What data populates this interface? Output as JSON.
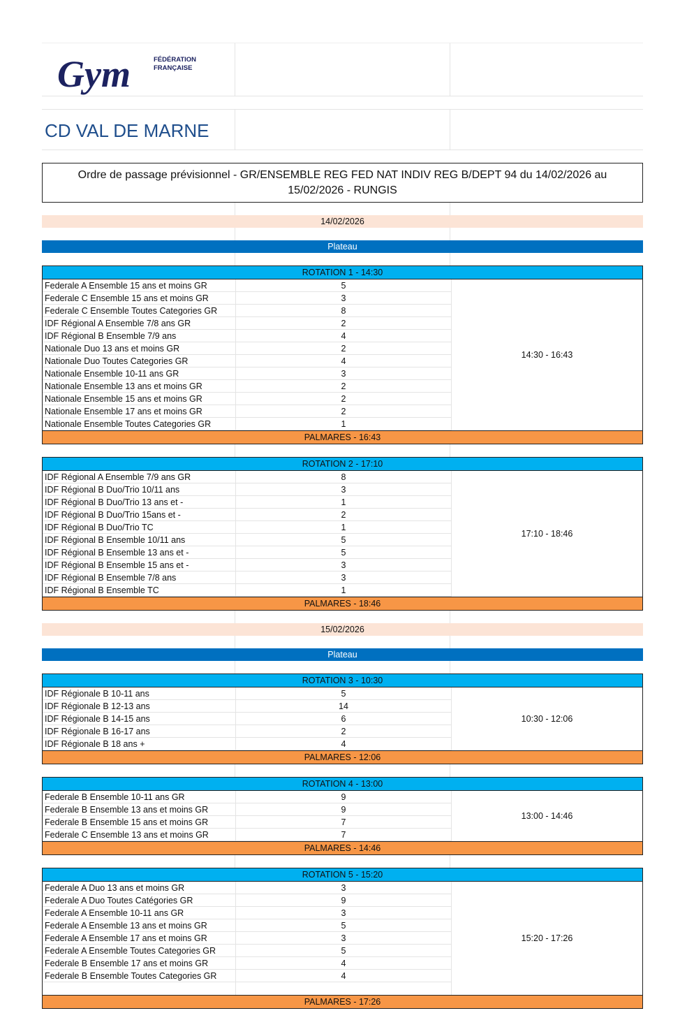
{
  "logo": {
    "text": "FÉDÉRATION FRANÇAISE Gym",
    "color": "#1c2260"
  },
  "org_title": "CD VAL DE MARNE",
  "doc_title": "Ordre de passage prévisionnel - GR/ENSEMBLE REG FED NAT INDIV REG B/DEPT 94 du 14/02/2026 au 15/02/2026 - RUNGIS",
  "colors": {
    "date_bg": "#fce4d6",
    "plateau_bg": "#0070c0",
    "rotation_bg": "#00b0f0",
    "palmares_bg": "#f79646"
  },
  "days": [
    {
      "date": "14/02/2026",
      "plateau": "Plateau",
      "rotations": [
        {
          "title": "ROTATION 1 - 14:30",
          "range": "14:30 - 16:43",
          "palmares": "PALMARES - 16:43",
          "rows": [
            {
              "cat": "Federale A Ensemble 15 ans et moins GR",
              "n": "5"
            },
            {
              "cat": "Federale C Ensemble 15 ans et moins GR",
              "n": "3"
            },
            {
              "cat": "Federale C Ensemble Toutes Categories GR",
              "n": "8"
            },
            {
              "cat": "IDF Régional  A Ensemble 7/8 ans GR",
              "n": "2"
            },
            {
              "cat": "IDF Régional B Ensemble 7/9 ans",
              "n": "4"
            },
            {
              "cat": "Nationale Duo 13 ans et moins GR",
              "n": "2"
            },
            {
              "cat": "Nationale Duo Toutes Categories GR",
              "n": "4"
            },
            {
              "cat": "Nationale Ensemble 10-11 ans GR",
              "n": "3"
            },
            {
              "cat": "Nationale Ensemble 13 ans et moins GR",
              "n": "2"
            },
            {
              "cat": "Nationale Ensemble 15 ans et moins GR",
              "n": "2"
            },
            {
              "cat": "Nationale Ensemble 17 ans et moins GR",
              "n": "2"
            },
            {
              "cat": "Nationale Ensemble Toutes Categories GR",
              "n": "1"
            }
          ]
        },
        {
          "title": "ROTATION 2 - 17:10",
          "range": "17:10 - 18:46",
          "palmares": "PALMARES - 18:46",
          "rows": [
            {
              "cat": "IDF Régional  A Ensemble 7/9 ans GR",
              "n": "8"
            },
            {
              "cat": "IDF Régional B Duo/Trio 10/11 ans",
              "n": "3"
            },
            {
              "cat": "IDF Régional B Duo/Trio 13 ans et -",
              "n": "1"
            },
            {
              "cat": "IDF Régional B Duo/Trio 15ans et -",
              "n": "2"
            },
            {
              "cat": "IDF Régional B Duo/Trio TC",
              "n": "1"
            },
            {
              "cat": "IDF Régional B Ensemble 10/11 ans",
              "n": "5"
            },
            {
              "cat": "IDF Régional B Ensemble 13 ans et -",
              "n": "5"
            },
            {
              "cat": "IDF Régional B Ensemble 15 ans et -",
              "n": "3"
            },
            {
              "cat": "IDF Régional B Ensemble 7/8 ans",
              "n": "3"
            },
            {
              "cat": "IDF Régional B Ensemble TC",
              "n": "1"
            }
          ]
        }
      ]
    },
    {
      "date": "15/02/2026",
      "plateau": "Plateau",
      "rotations": [
        {
          "title": "ROTATION 3 - 10:30",
          "range": "10:30 - 12:06",
          "palmares": "PALMARES - 12:06",
          "rows": [
            {
              "cat": "IDF Régionale B 10-11 ans",
              "n": "5"
            },
            {
              "cat": "IDF Régionale B 12-13 ans",
              "n": "14"
            },
            {
              "cat": "IDF Régionale B 14-15 ans",
              "n": "6"
            },
            {
              "cat": "IDF Régionale B 16-17 ans",
              "n": "2"
            },
            {
              "cat": "IDF Régionale B 18 ans +",
              "n": "4"
            }
          ]
        },
        {
          "title": "ROTATION 4 - 13:00",
          "range": "13:00 - 14:46",
          "palmares": "PALMARES - 14:46",
          "rows": [
            {
              "cat": "Federale B Ensemble 10-11 ans GR",
              "n": "9"
            },
            {
              "cat": "Federale B Ensemble 13 ans et moins GR",
              "n": "9"
            },
            {
              "cat": "Federale B Ensemble 15 ans et moins GR",
              "n": "7"
            },
            {
              "cat": "Federale C Ensemble 13 ans et moins GR",
              "n": "7"
            }
          ]
        },
        {
          "title": "ROTATION 5 - 15:20",
          "range": "15:20 - 17:26",
          "palmares": "PALMARES - 17:26",
          "rows": [
            {
              "cat": "Federale A Duo 13 ans et moins GR",
              "n": "3"
            },
            {
              "cat": "Federale A Duo Toutes Catégories GR",
              "n": "9"
            },
            {
              "cat": "Federale A Ensemble 10-11 ans GR",
              "n": "3"
            },
            {
              "cat": "Federale A Ensemble 13 ans et moins GR",
              "n": "5"
            },
            {
              "cat": "Federale A Ensemble 17 ans et moins GR",
              "n": "3"
            },
            {
              "cat": "Federale A Ensemble Toutes Categories GR",
              "n": "5"
            },
            {
              "cat": "Federale B Ensemble 17 ans et moins GR",
              "n": "4"
            },
            {
              "cat": "Federale B Ensemble Toutes Categories GR",
              "n": "4"
            }
          ]
        }
      ]
    }
  ]
}
